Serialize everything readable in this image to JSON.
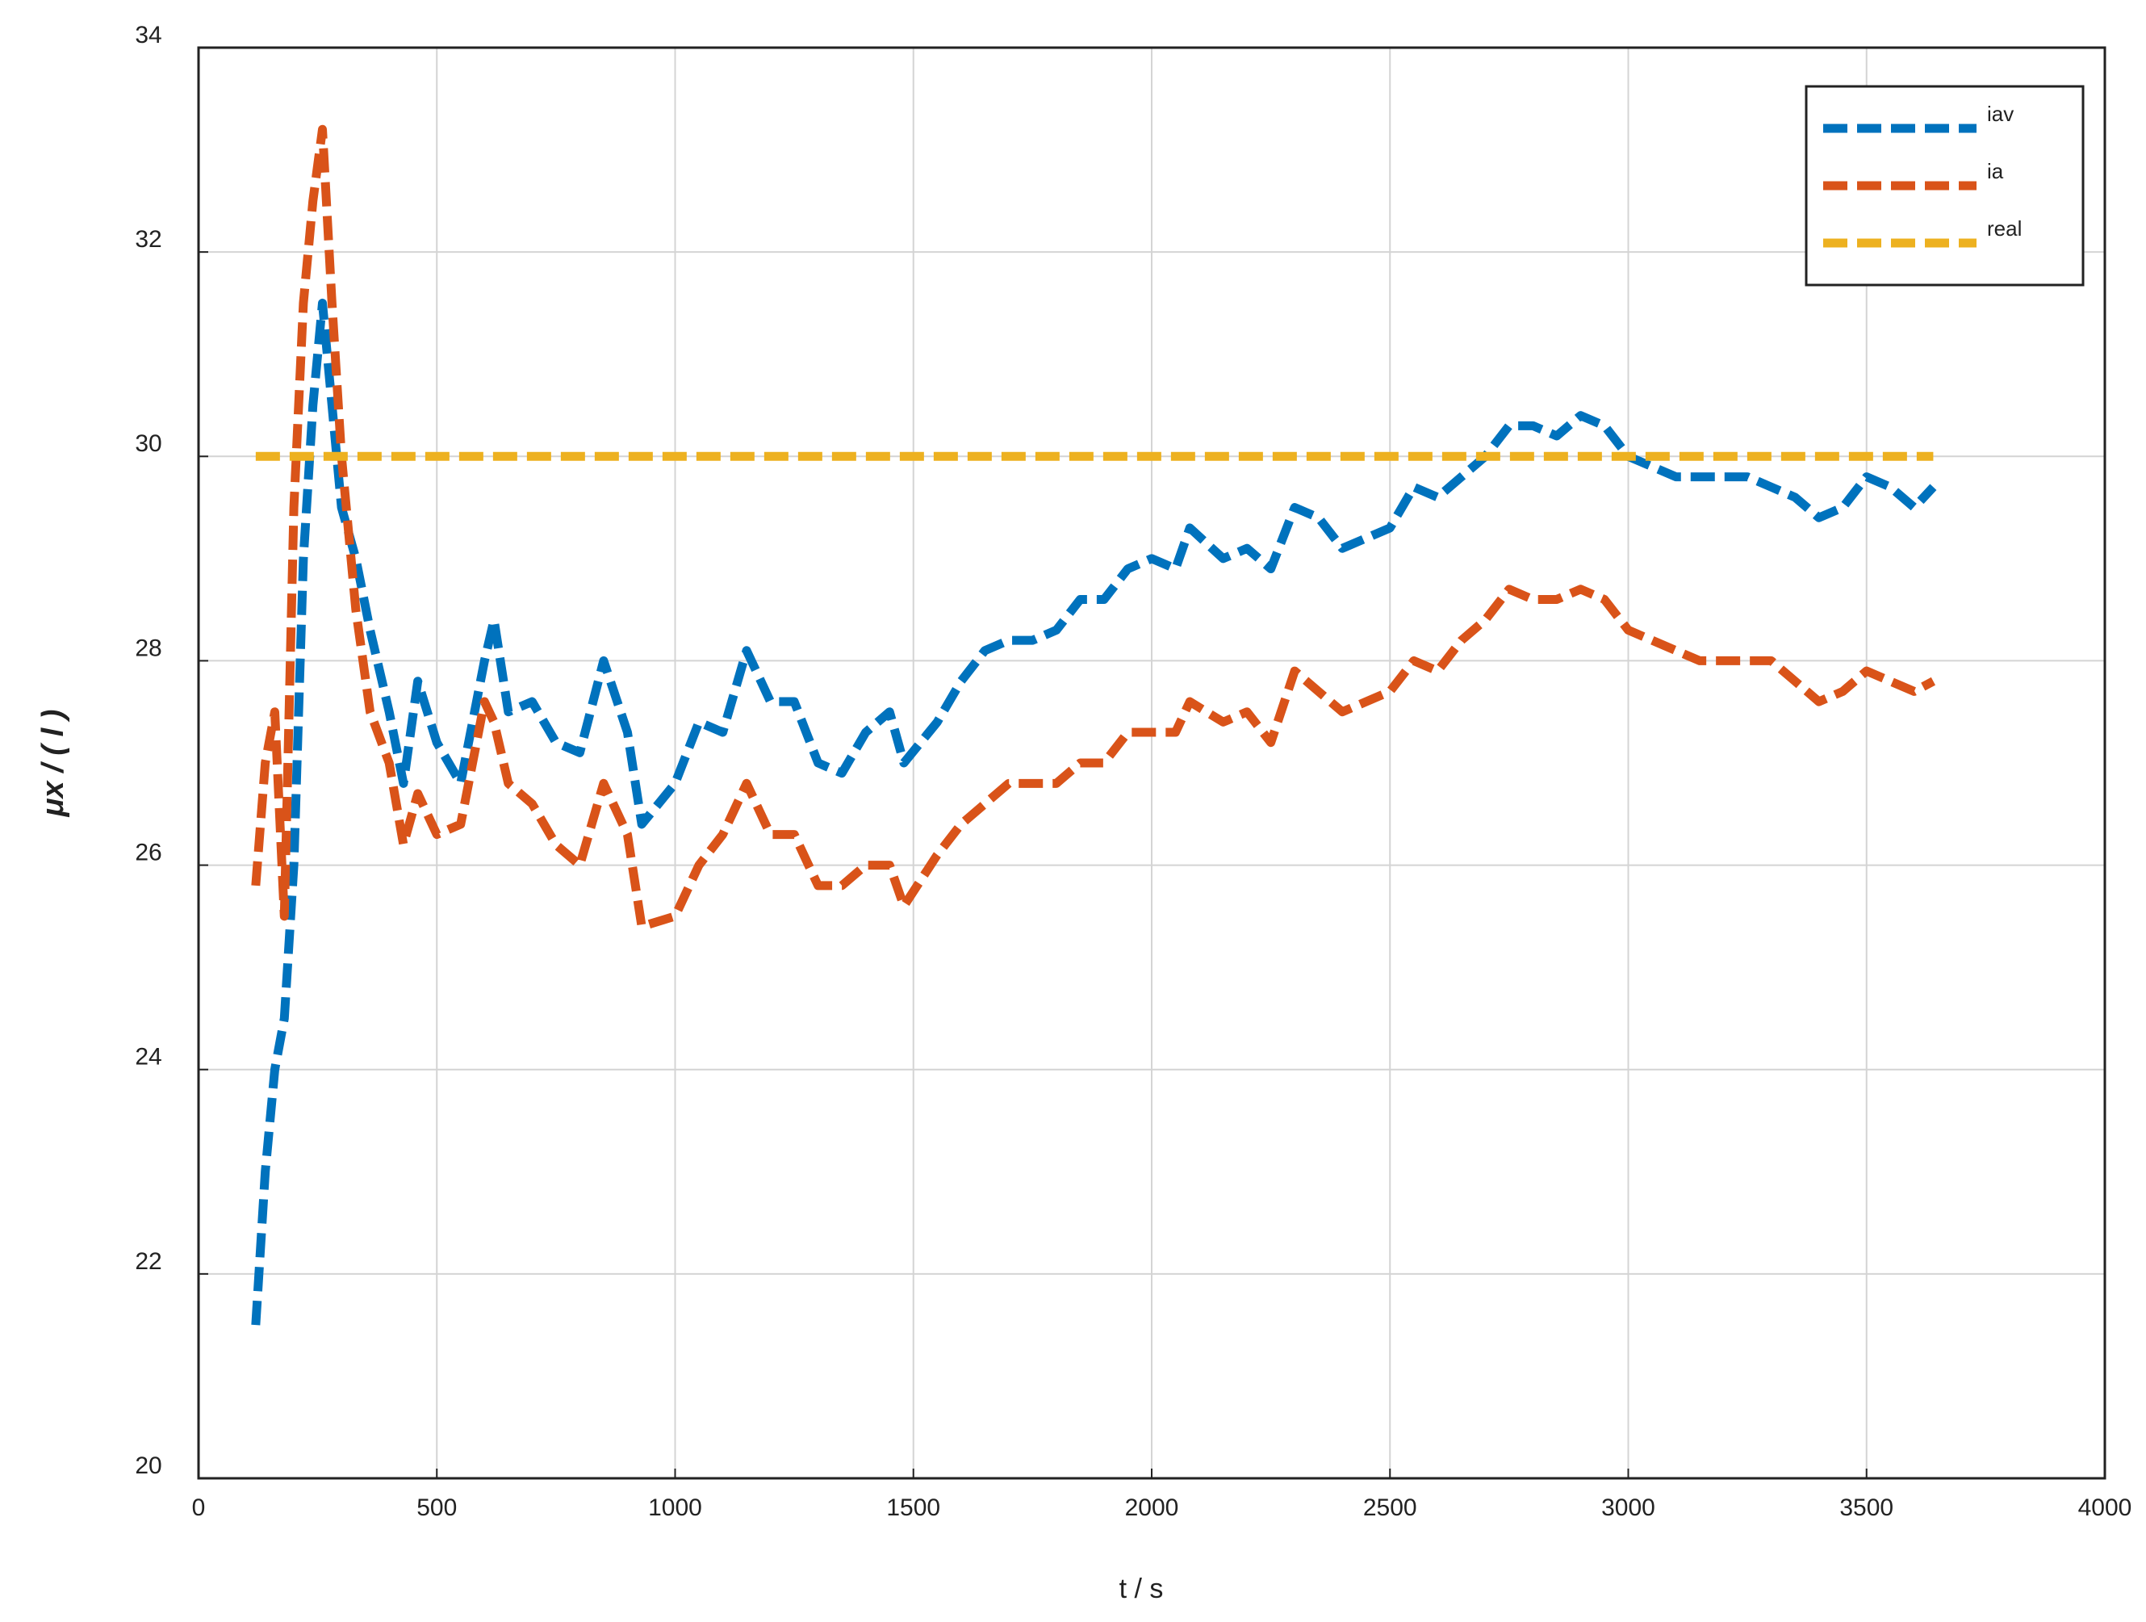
{
  "chart_data": {
    "type": "line",
    "x_label": "t / s",
    "y_label": "μx / ( l )",
    "xlim": [
      0,
      4000
    ],
    "xticks": [
      0,
      500,
      1000,
      1500,
      2000,
      2500,
      3000,
      3500,
      4000
    ],
    "ylim": [
      20,
      34
    ],
    "yticks": [
      20,
      22,
      24,
      26,
      28,
      30,
      32,
      34
    ],
    "grid": true,
    "legend": "upper right",
    "x": [
      120,
      140,
      160,
      180,
      200,
      220,
      240,
      260,
      280,
      300,
      330,
      360,
      400,
      430,
      460,
      500,
      550,
      600,
      620,
      650,
      700,
      750,
      800,
      850,
      900,
      930,
      1000,
      1050,
      1100,
      1150,
      1200,
      1250,
      1300,
      1350,
      1400,
      1450,
      1480,
      1550,
      1600,
      1650,
      1700,
      1750,
      1800,
      1850,
      1900,
      1950,
      2000,
      2050,
      2080,
      2150,
      2200,
      2250,
      2300,
      2350,
      2400,
      2450,
      2500,
      2550,
      2600,
      2650,
      2700,
      2750,
      2800,
      2850,
      2900,
      2950,
      3000,
      3050,
      3100,
      3150,
      3200,
      3250,
      3300,
      3350,
      3400,
      3450,
      3500,
      3550,
      3600,
      3640
    ],
    "series": [
      {
        "name": "iav",
        "color": "#0072bd",
        "values": [
          21.5,
          23,
          24,
          24.5,
          26,
          29,
          30.5,
          31.5,
          30.5,
          29.5,
          29,
          28.3,
          27.5,
          26.8,
          27.8,
          27.2,
          26.8,
          28,
          28.4,
          27.5,
          27.6,
          27.2,
          27.1,
          28,
          27.3,
          26.4,
          26.8,
          27.4,
          27.3,
          28.1,
          27.6,
          27.6,
          27,
          26.9,
          27.3,
          27.5,
          27,
          27.4,
          27.8,
          28.1,
          28.2,
          28.2,
          28.3,
          28.6,
          28.6,
          28.9,
          29.0,
          28.9,
          29.3,
          29.0,
          29.1,
          28.9,
          29.5,
          29.4,
          29.1,
          29.2,
          29.3,
          29.7,
          29.6,
          29.8,
          30.0,
          30.3,
          30.3,
          30.2,
          30.4,
          30.3,
          30.0,
          29.9,
          29.8,
          29.8,
          29.8,
          29.8,
          29.7,
          29.6,
          29.4,
          29.5,
          29.8,
          29.7,
          29.5,
          29.7
        ]
      },
      {
        "name": "ia",
        "color": "#d95319",
        "values": [
          25.8,
          27,
          27.5,
          25.5,
          29.5,
          31.5,
          32.5,
          33.2,
          31.5,
          30,
          28.5,
          27.5,
          27,
          26.2,
          26.7,
          26.3,
          26.4,
          27.6,
          27.4,
          26.8,
          26.6,
          26.2,
          26,
          26.8,
          26.3,
          25.4,
          25.5,
          26,
          26.3,
          26.8,
          26.3,
          26.3,
          25.8,
          25.8,
          26,
          26.0,
          25.6,
          26.1,
          26.4,
          26.6,
          26.8,
          26.8,
          26.8,
          27.0,
          27.0,
          27.3,
          27.3,
          27.3,
          27.6,
          27.4,
          27.5,
          27.2,
          27.9,
          27.7,
          27.5,
          27.6,
          27.7,
          28.0,
          27.9,
          28.2,
          28.4,
          28.7,
          28.6,
          28.6,
          28.7,
          28.6,
          28.3,
          28.2,
          28.1,
          28.0,
          28.0,
          28.0,
          28.0,
          27.8,
          27.6,
          27.7,
          27.9,
          27.8,
          27.7,
          27.8
        ]
      },
      {
        "name": "real",
        "color": "#edb120",
        "x": [
          120,
          3640
        ],
        "values": [
          30,
          30
        ]
      }
    ]
  }
}
